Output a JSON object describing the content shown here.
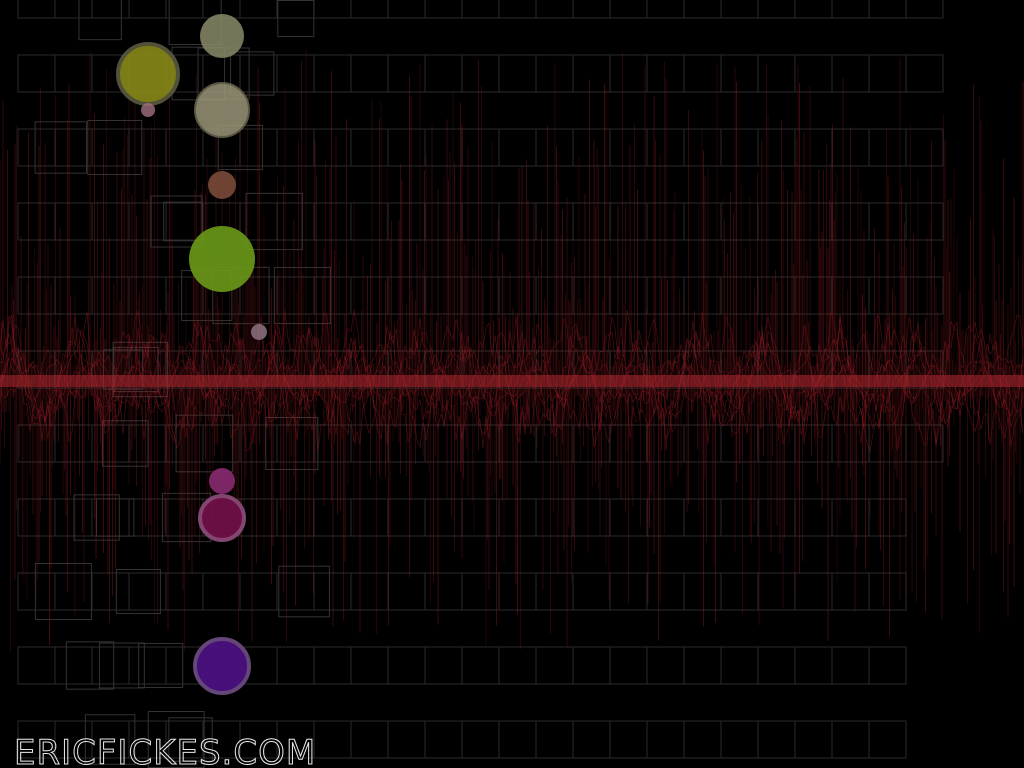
{
  "site_label": "ERICFICKES.COM"
}
